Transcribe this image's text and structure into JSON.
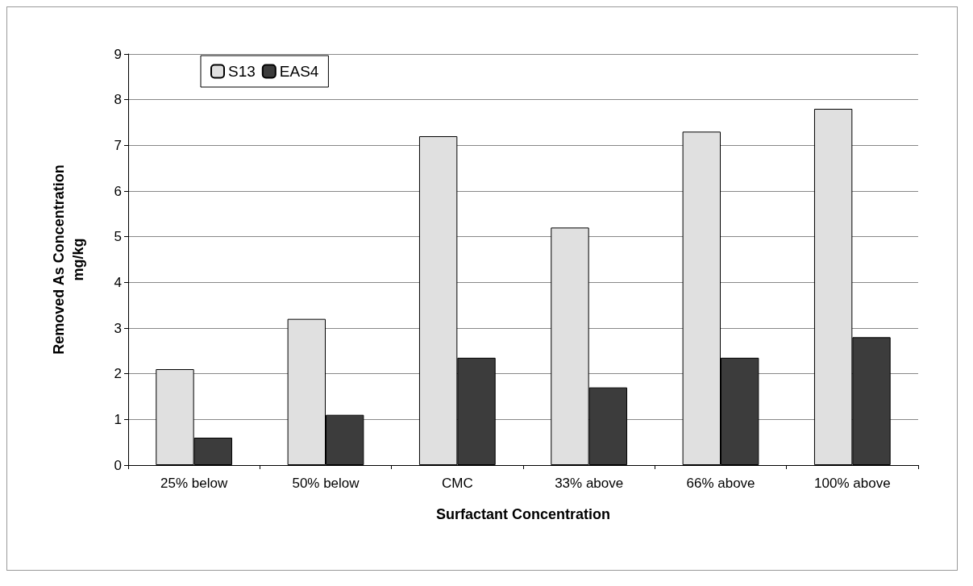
{
  "chart_data": {
    "type": "bar",
    "xlabel": "Surfactant Concentration",
    "ylabel": "Removed As Concentration\nmg/kg",
    "categories": [
      "25% below",
      "50% below",
      "CMC",
      "33% above",
      "66% above",
      "100% above"
    ],
    "series": [
      {
        "name": "S13",
        "color": "#e0e0e0",
        "values": [
          2.1,
          3.2,
          7.2,
          5.2,
          7.3,
          7.8
        ]
      },
      {
        "name": "EAS4",
        "color": "#3c3c3c",
        "values": [
          0.6,
          1.1,
          2.35,
          1.7,
          2.35,
          2.8
        ]
      }
    ],
    "ylim": [
      0,
      9
    ],
    "yticks": [
      0,
      1,
      2,
      3,
      4,
      5,
      6,
      7,
      8,
      9
    ],
    "grid": "y",
    "legend": "top left"
  }
}
